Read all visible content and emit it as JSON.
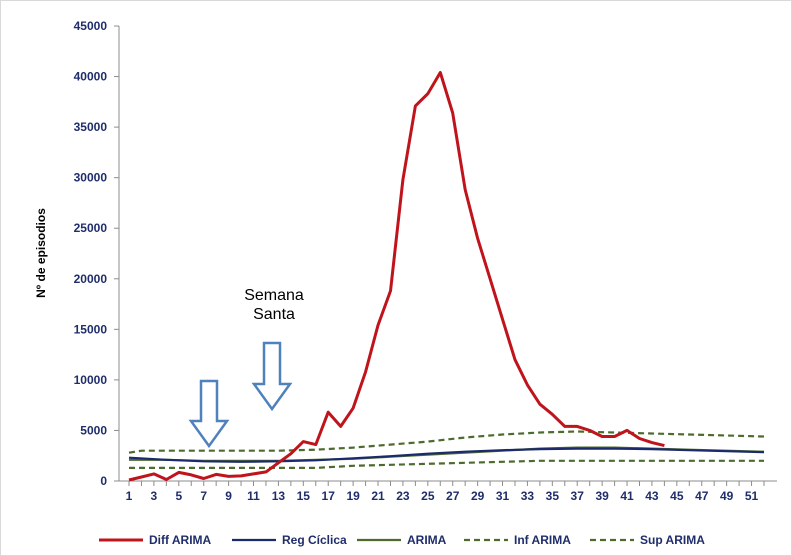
{
  "chart_data": {
    "type": "line",
    "xlabel": "",
    "ylabel": "Nº de episodios",
    "ylim": [
      0,
      45000
    ],
    "yticks": [
      0,
      5000,
      10000,
      15000,
      20000,
      25000,
      30000,
      35000,
      40000,
      45000
    ],
    "xlim": [
      1,
      52
    ],
    "xticks": [
      1,
      3,
      5,
      7,
      9,
      11,
      13,
      15,
      17,
      19,
      21,
      23,
      25,
      27,
      29,
      31,
      33,
      35,
      37,
      39,
      41,
      43,
      45,
      47,
      49,
      51
    ],
    "grid": false,
    "legend_position": "bottom",
    "annotations": [
      {
        "text_lines": [
          "Semana",
          "Santa"
        ],
        "arrow": "down",
        "x": 14.5
      },
      {
        "text_lines": [],
        "arrow": "down",
        "x": 8.5
      }
    ],
    "series": [
      {
        "name": "Diff ARIMA",
        "color": "#c0141c",
        "style": "solid",
        "x": [
          1,
          2,
          3,
          4,
          5,
          6,
          7,
          8,
          9,
          10,
          11,
          12,
          13,
          14,
          15,
          16,
          17,
          18,
          19,
          20,
          21,
          22,
          23,
          24,
          25,
          26,
          27,
          28,
          29,
          30,
          31,
          32,
          33,
          34,
          35,
          36,
          37,
          38,
          39,
          40,
          41,
          42,
          43,
          44
        ],
        "values": [
          100,
          400,
          700,
          150,
          850,
          600,
          250,
          650,
          450,
          500,
          700,
          900,
          1800,
          2700,
          3900,
          3600,
          6800,
          5400,
          7200,
          10800,
          15400,
          18800,
          29800,
          37100,
          38300,
          40400,
          36400,
          28800,
          24000,
          20000,
          16000,
          12000,
          9500,
          7600,
          6600,
          5400,
          5400,
          5000,
          4400,
          4400,
          5000,
          4200,
          3800,
          3500
        ]
      },
      {
        "name": "Reg Cíclica",
        "color": "#1b2a6b",
        "style": "solid",
        "x": [
          1,
          4,
          7,
          10,
          13,
          16,
          19,
          22,
          25,
          28,
          31,
          34,
          37,
          40,
          43,
          46,
          49,
          52
        ],
        "values": [
          2300,
          2100,
          1950,
          1900,
          1950,
          2050,
          2250,
          2450,
          2700,
          2900,
          3050,
          3150,
          3200,
          3200,
          3150,
          3050,
          2950,
          2850
        ]
      },
      {
        "name": "ARIMA",
        "color": "#4e6b2e",
        "style": "solid",
        "x": [
          1,
          4,
          7,
          10,
          13,
          16,
          19,
          22,
          25,
          28,
          31,
          34,
          37,
          40,
          43,
          46,
          49,
          52
        ],
        "values": [
          2100,
          2100,
          2000,
          2000,
          2000,
          2100,
          2200,
          2400,
          2600,
          2800,
          3000,
          3200,
          3300,
          3300,
          3200,
          3100,
          3000,
          2900
        ]
      },
      {
        "name": "Inf ARIMA",
        "color": "#4e6b2e",
        "style": "dashed",
        "x": [
          1,
          4,
          7,
          10,
          13,
          16,
          19,
          22,
          25,
          28,
          31,
          34,
          37,
          40,
          43,
          46,
          49,
          52
        ],
        "values": [
          1300,
          1300,
          1300,
          1300,
          1300,
          1300,
          1500,
          1600,
          1700,
          1800,
          1900,
          2000,
          2000,
          2000,
          2000,
          2000,
          2000,
          2000
        ]
      },
      {
        "name": "Sup ARIMA",
        "color": "#4e6b2e",
        "style": "dashed",
        "x": [
          1,
          2,
          4,
          7,
          10,
          13,
          16,
          19,
          22,
          25,
          28,
          31,
          34,
          37,
          40,
          43,
          46,
          49,
          52
        ],
        "values": [
          2800,
          3000,
          3000,
          3000,
          3000,
          3000,
          3100,
          3300,
          3600,
          3900,
          4300,
          4600,
          4800,
          4900,
          4800,
          4700,
          4600,
          4500,
          4400
        ]
      }
    ]
  }
}
